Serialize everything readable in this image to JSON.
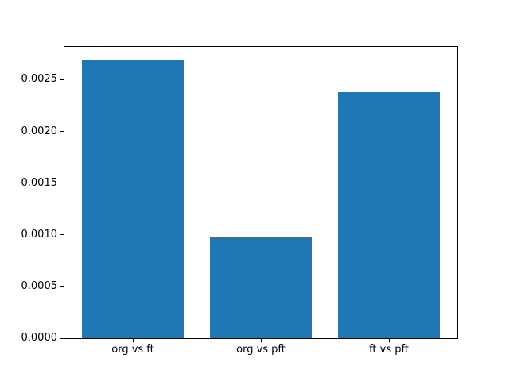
{
  "figure": {
    "background": "#ffffff",
    "axis_color": "#000000",
    "text_color": "#000000"
  },
  "chart_data": {
    "type": "bar",
    "title": "",
    "xlabel": "",
    "ylabel": "",
    "categories": [
      "org vs ft",
      "org vs pft",
      "ft vs pft"
    ],
    "values": [
      0.00269,
      0.00098,
      0.00238
    ],
    "bar_color": "#1f77b4",
    "bar_width": 0.8,
    "xlim": [
      -0.54,
      2.54
    ],
    "ylim": [
      0,
      0.002825
    ],
    "yticks": [
      {
        "value": 0.0,
        "label": "0.0000"
      },
      {
        "value": 0.0005,
        "label": "0.0005"
      },
      {
        "value": 0.001,
        "label": "0.0010"
      },
      {
        "value": 0.0015,
        "label": "0.0015"
      },
      {
        "value": 0.002,
        "label": "0.0020"
      },
      {
        "value": 0.0025,
        "label": "0.0025"
      }
    ],
    "grid": false,
    "legend": null
  }
}
